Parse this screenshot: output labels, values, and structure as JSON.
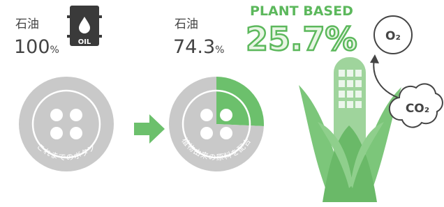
{
  "before": {
    "label": "石油",
    "value": 100,
    "value_label": "100%",
    "icon_text": "OIL",
    "caption": "これまでのボタン"
  },
  "after": {
    "label": "石油",
    "value": 74.3,
    "value_label": "74.3%",
    "plant_heading": "PLANT BASED",
    "plant_value": 25.7,
    "plant_value_label": "25.7%",
    "caption": "植物由来の原料を配合"
  },
  "cycle": {
    "o2": "O₂",
    "co2": "CO₂"
  }
}
